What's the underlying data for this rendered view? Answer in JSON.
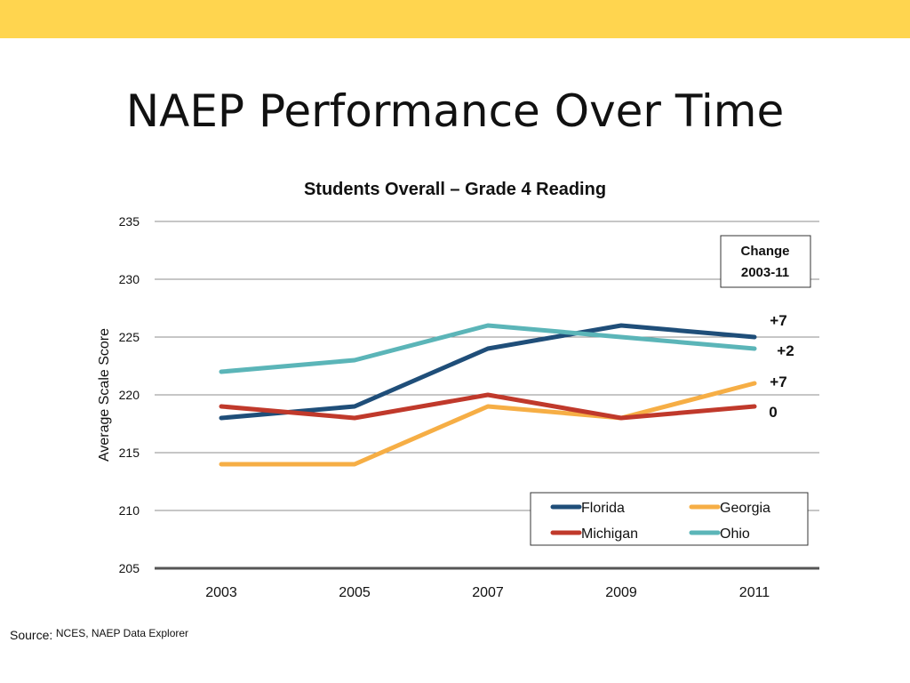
{
  "slide": {
    "title": "NAEP Performance Over Time",
    "accent_color": "#FFD54F"
  },
  "source": {
    "label": "Source:",
    "text": "NCES, NAEP Data Explorer"
  },
  "chart_data": {
    "type": "line",
    "title": "Students Overall – Grade 4 Reading",
    "xlabel": "",
    "ylabel": "Average Scale Score",
    "x": [
      "2003",
      "2005",
      "2007",
      "2009",
      "2011"
    ],
    "ylim": [
      205,
      235
    ],
    "yticks": [
      205,
      210,
      215,
      220,
      225,
      230,
      235
    ],
    "grid": true,
    "legend_position": "bottom-right",
    "series": [
      {
        "name": "Florida",
        "values": [
          218,
          219,
          224,
          226,
          225
        ],
        "color": "#1F4E79",
        "change": "+7"
      },
      {
        "name": "Georgia",
        "values": [
          214,
          214,
          219,
          218,
          221
        ],
        "color": "#F6AE45",
        "change": "+7"
      },
      {
        "name": "Michigan",
        "values": [
          219,
          218,
          220,
          218,
          219
        ],
        "color": "#C0392B",
        "change": "0"
      },
      {
        "name": "Ohio",
        "values": [
          222,
          223,
          226,
          225,
          224
        ],
        "color": "#5BB5B8",
        "change": "+2"
      }
    ],
    "change_box": {
      "line1": "Change",
      "line2": "2003-11"
    }
  }
}
